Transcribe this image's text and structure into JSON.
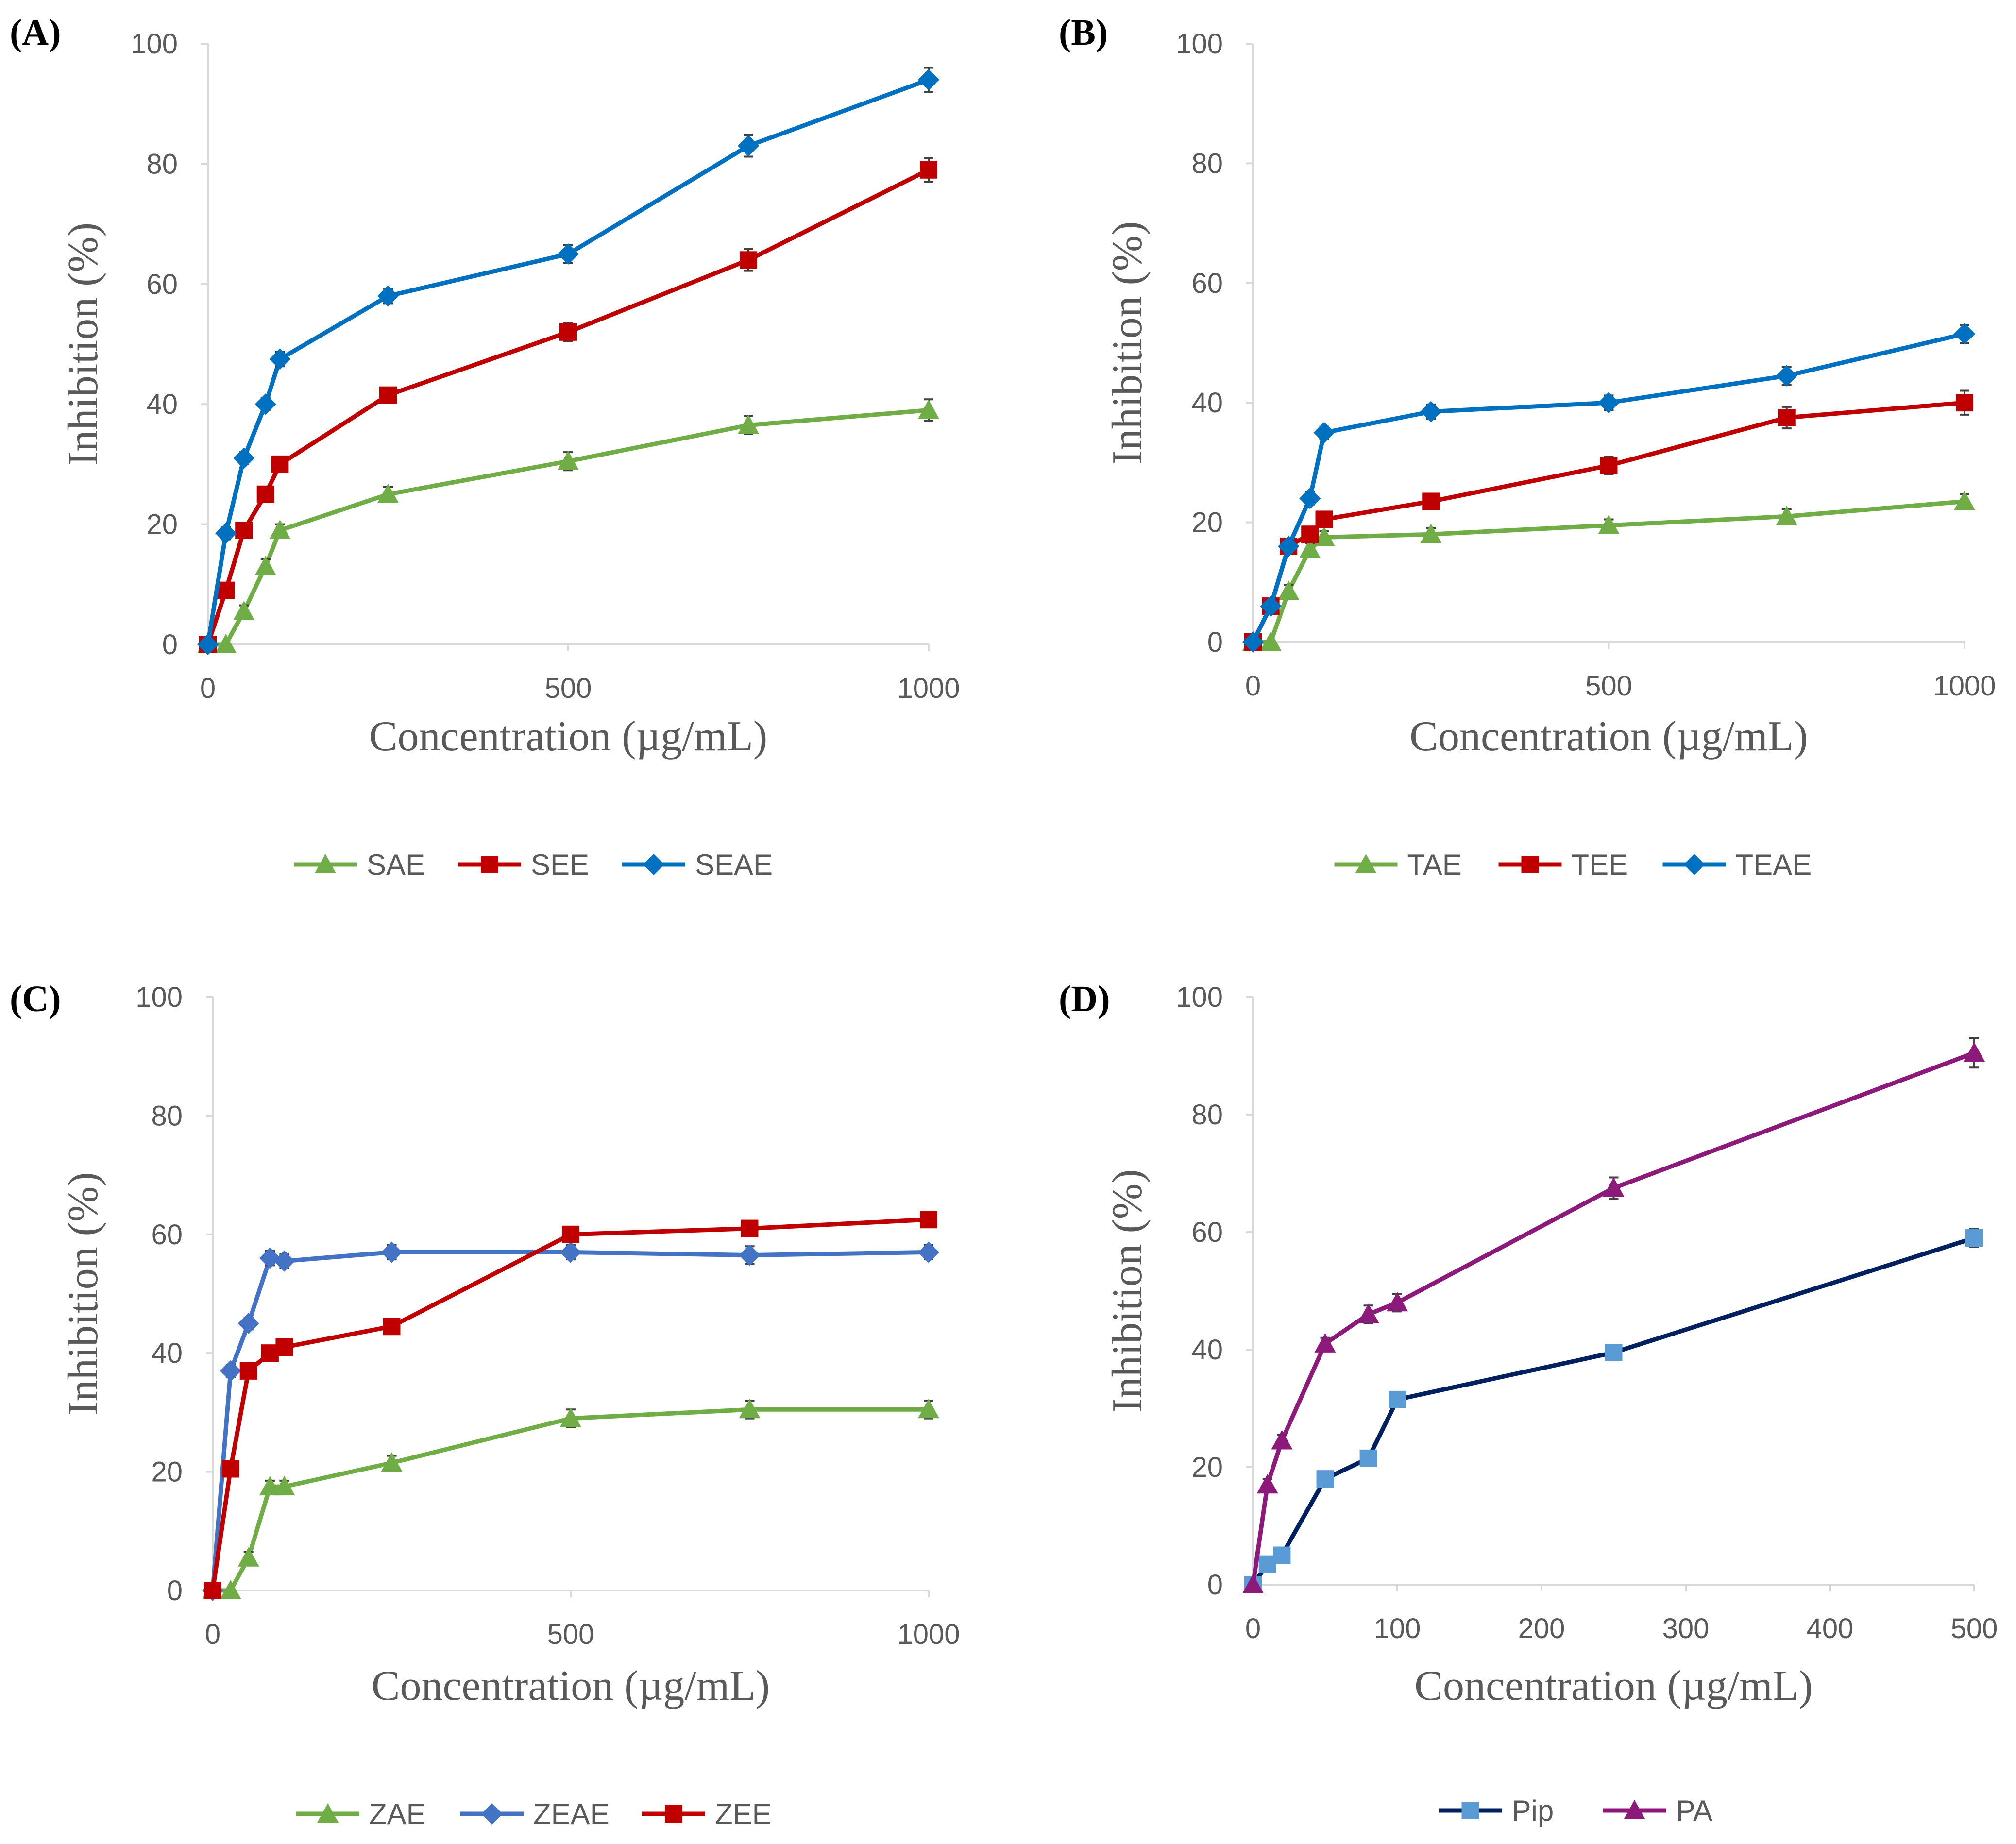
{
  "chart_data": [
    {
      "type": "line",
      "panel_label": "(A)",
      "xlabel": "Concentration (µg/mL)",
      "ylabel": "Inhibition (%)",
      "xlim": [
        0,
        1000
      ],
      "ylim": [
        0,
        100
      ],
      "x_ticks": [
        "0",
        "500",
        "1000"
      ],
      "y_ticks": [
        "0",
        "20",
        "40",
        "60",
        "80",
        "100"
      ],
      "grid": false,
      "legend_position": "bottom",
      "series": [
        {
          "name": "SAE",
          "color": "#70ad47",
          "marker": "triangle",
          "x": [
            0,
            25,
            50,
            80,
            100,
            250,
            500,
            750,
            1000
          ],
          "y": [
            0,
            0,
            5.5,
            13,
            19,
            25,
            30.5,
            36.5,
            39
          ],
          "err": [
            0,
            0,
            1,
            1.2,
            1,
            1.2,
            1.5,
            1.5,
            1.8
          ]
        },
        {
          "name": "SEE",
          "color": "#c00000",
          "marker": "square",
          "x": [
            0,
            25,
            50,
            80,
            100,
            250,
            500,
            750,
            1000
          ],
          "y": [
            0,
            9,
            19,
            25,
            30,
            41.5,
            52,
            64,
            79
          ],
          "err": [
            0,
            1,
            1,
            1,
            1.2,
            1.2,
            1.5,
            1.8,
            2
          ]
        },
        {
          "name": "SEAE",
          "color": "#0070c0",
          "marker": "diamond",
          "x": [
            0,
            25,
            50,
            80,
            100,
            250,
            500,
            750,
            1000
          ],
          "y": [
            0,
            18.5,
            31,
            40,
            47.5,
            58,
            65,
            83,
            94
          ],
          "err": [
            0,
            1,
            1,
            1,
            1.2,
            1.2,
            1.5,
            1.8,
            2
          ]
        }
      ]
    },
    {
      "type": "line",
      "panel_label": "(B)",
      "xlabel": "Concentration (µg/mL)",
      "ylabel": "Inhibition (%)",
      "xlim": [
        0,
        1000
      ],
      "ylim": [
        0,
        100
      ],
      "x_ticks": [
        "0",
        "500",
        "1000"
      ],
      "y_ticks": [
        "0",
        "20",
        "40",
        "60",
        "80",
        "100"
      ],
      "grid": false,
      "legend_position": "bottom",
      "series": [
        {
          "name": "TAE",
          "color": "#70ad47",
          "marker": "triangle",
          "x": [
            0,
            25,
            50,
            80,
            100,
            250,
            500,
            750,
            1000
          ],
          "y": [
            0,
            0,
            8.5,
            15.5,
            17.5,
            18,
            19.5,
            21,
            23.5
          ],
          "err": [
            0,
            0,
            1,
            1,
            1,
            1,
            1,
            1.2,
            1.2
          ]
        },
        {
          "name": "TEE",
          "color": "#c00000",
          "marker": "square",
          "x": [
            0,
            25,
            50,
            80,
            100,
            250,
            500,
            750,
            1000
          ],
          "y": [
            0,
            6,
            16,
            18,
            20.5,
            23.5,
            29.5,
            37.5,
            40
          ],
          "err": [
            0,
            1,
            1,
            1,
            1,
            1.2,
            1.5,
            1.8,
            2
          ]
        },
        {
          "name": "TEAE",
          "color": "#0070c0",
          "marker": "diamond",
          "x": [
            0,
            25,
            50,
            80,
            100,
            250,
            500,
            750,
            1000
          ],
          "y": [
            0,
            6,
            16,
            24,
            35,
            38.5,
            40,
            44.5,
            51.5
          ],
          "err": [
            0,
            1,
            1,
            1,
            1,
            1.2,
            1.2,
            1.5,
            1.5
          ]
        }
      ]
    },
    {
      "type": "line",
      "panel_label": "(C)",
      "xlabel": "Concentration (µg/mL)",
      "ylabel": "Inhibition (%)",
      "xlim": [
        0,
        1000
      ],
      "ylim": [
        0,
        100
      ],
      "x_ticks": [
        "0",
        "500",
        "1000"
      ],
      "y_ticks": [
        "0",
        "20",
        "40",
        "60",
        "80",
        "100"
      ],
      "grid": false,
      "legend_position": "bottom",
      "series": [
        {
          "name": "ZAE",
          "color": "#70ad47",
          "marker": "triangle",
          "x": [
            0,
            25,
            50,
            80,
            100,
            250,
            500,
            750,
            1000
          ],
          "y": [
            0,
            0,
            5.5,
            17.5,
            17.5,
            21.5,
            29,
            30.5,
            30.5
          ],
          "err": [
            0,
            0,
            1,
            1,
            1,
            1.2,
            1.5,
            1.5,
            1.5
          ]
        },
        {
          "name": "ZEAE",
          "color": "#4472c4",
          "marker": "diamond",
          "x": [
            0,
            25,
            50,
            80,
            100,
            250,
            500,
            750,
            1000
          ],
          "y": [
            0,
            37,
            45,
            56,
            55.5,
            57,
            57,
            56.5,
            57
          ],
          "err": [
            0,
            1,
            1,
            1.2,
            1.2,
            1.2,
            1.2,
            1.5,
            1.2
          ]
        },
        {
          "name": "ZEE",
          "color": "#c00000",
          "marker": "square",
          "x": [
            0,
            25,
            50,
            80,
            100,
            250,
            500,
            750,
            1000
          ],
          "y": [
            0,
            20.5,
            37,
            40,
            41,
            44.5,
            60,
            61,
            62.5
          ],
          "err": [
            0,
            1,
            1,
            1,
            1,
            1,
            1.2,
            1.2,
            1
          ]
        }
      ]
    },
    {
      "type": "line",
      "panel_label": "(D)",
      "xlabel": "Concentration (µg/mL)",
      "ylabel": "Inhibition (%)",
      "xlim": [
        0,
        500
      ],
      "ylim": [
        0,
        100
      ],
      "x_ticks": [
        "0",
        "100",
        "200",
        "300",
        "400",
        "500"
      ],
      "y_ticks": [
        "0",
        "20",
        "40",
        "60",
        "80",
        "100"
      ],
      "grid": false,
      "legend_position": "bottom",
      "series": [
        {
          "name": "Pip",
          "color": "#002060",
          "marker_color": "#5b9bd5",
          "marker": "square",
          "x": [
            0,
            10,
            20,
            50,
            80,
            100,
            250,
            500
          ],
          "y": [
            0,
            3.5,
            5,
            18,
            21.5,
            31.5,
            39.5,
            59
          ],
          "err": [
            0,
            0.5,
            0.8,
            1,
            1,
            1.2,
            1.2,
            1.5
          ]
        },
        {
          "name": "PA",
          "color": "#8b1a7a",
          "marker": "triangle",
          "x": [
            0,
            10,
            20,
            50,
            80,
            100,
            250,
            500
          ],
          "y": [
            0,
            17,
            24.5,
            41,
            46,
            48,
            67.5,
            90.5
          ],
          "err": [
            0,
            1,
            1,
            1,
            1.5,
            1.5,
            1.8,
            2.5
          ]
        }
      ]
    }
  ]
}
